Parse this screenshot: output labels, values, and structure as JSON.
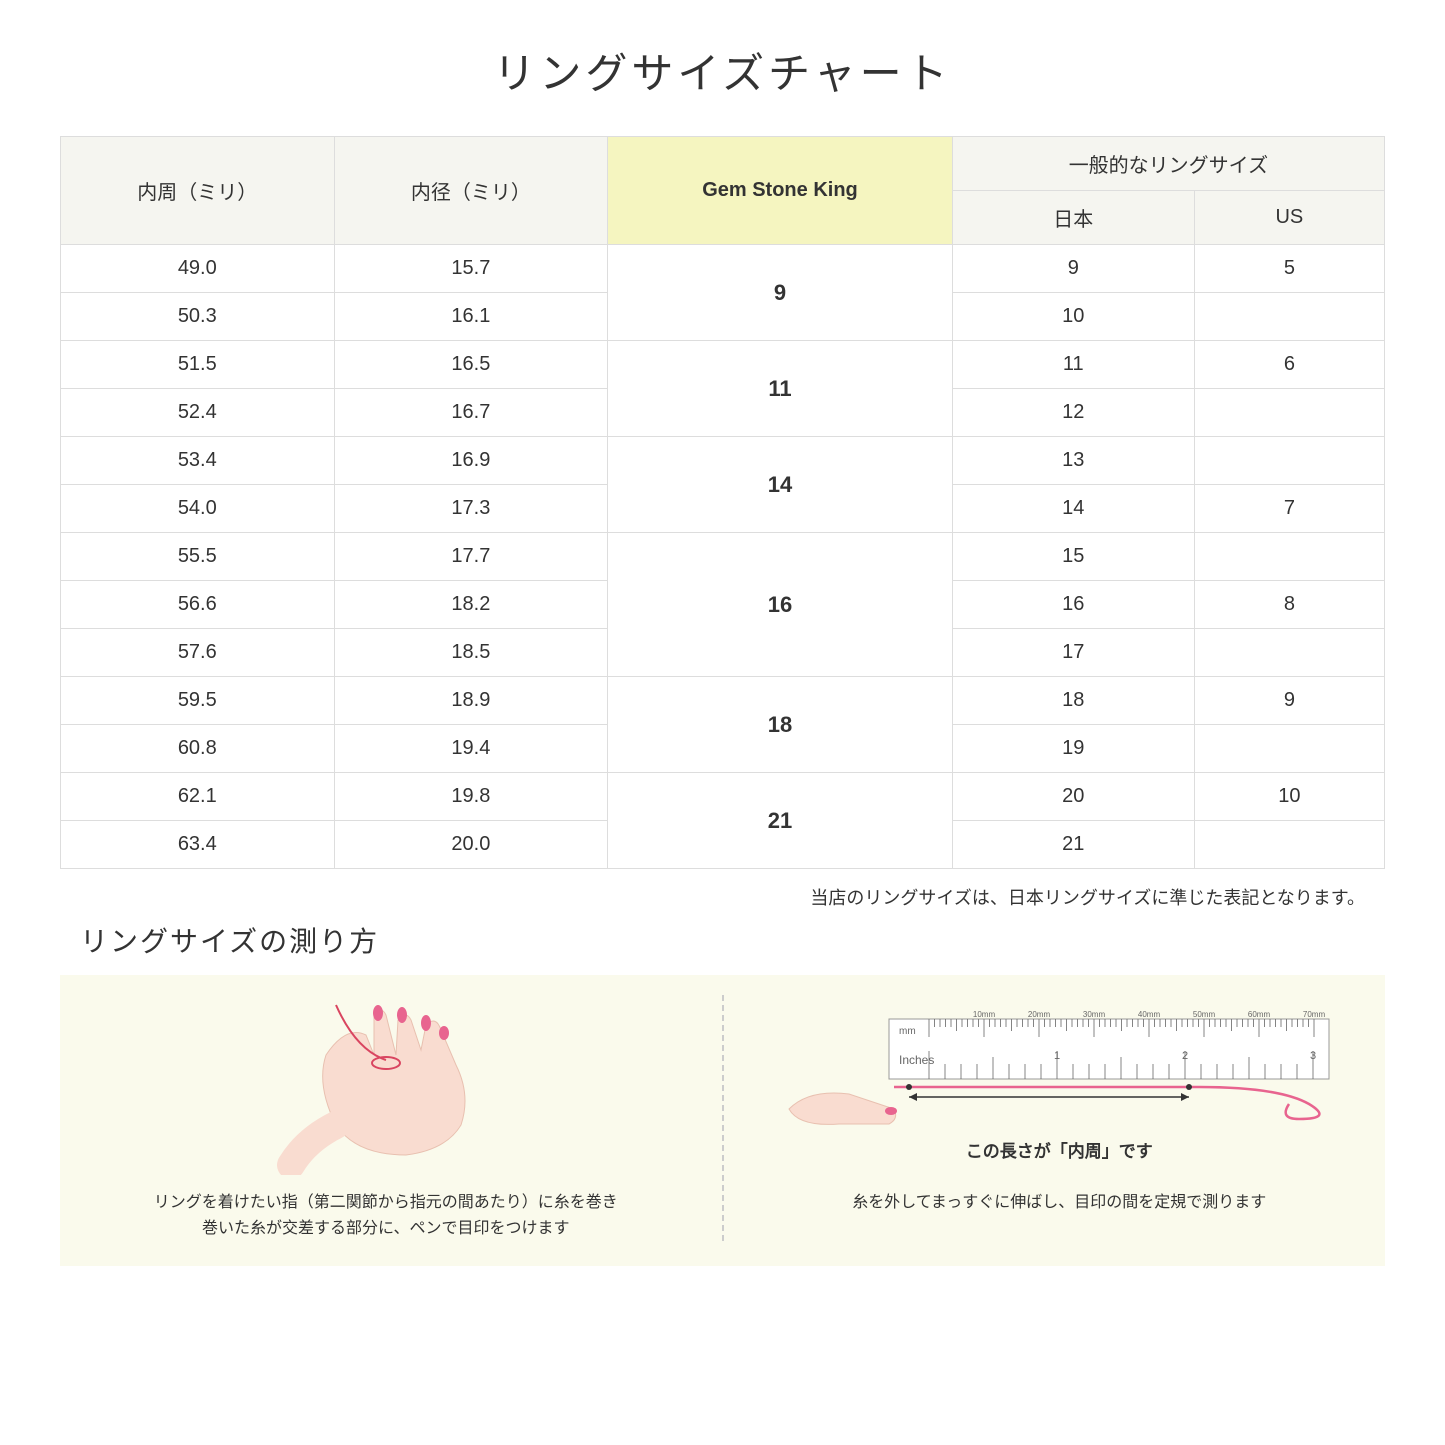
{
  "title": "リングサイズチャート",
  "headers": {
    "circumference": "内周（ミリ）",
    "diameter": "内径（ミリ）",
    "gsk": "Gem Stone King",
    "general": "一般的なリングサイズ",
    "japan": "日本",
    "us": "US"
  },
  "groups": [
    {
      "gsk": "9",
      "rows": [
        {
          "circ": "49.0",
          "dia": "15.7",
          "jp": "9",
          "us": "5"
        },
        {
          "circ": "50.3",
          "dia": "16.1",
          "jp": "10",
          "us": ""
        }
      ]
    },
    {
      "gsk": "11",
      "rows": [
        {
          "circ": "51.5",
          "dia": "16.5",
          "jp": "11",
          "us": "6"
        },
        {
          "circ": "52.4",
          "dia": "16.7",
          "jp": "12",
          "us": ""
        }
      ]
    },
    {
      "gsk": "14",
      "rows": [
        {
          "circ": "53.4",
          "dia": "16.9",
          "jp": "13",
          "us": ""
        },
        {
          "circ": "54.0",
          "dia": "17.3",
          "jp": "14",
          "us": "7"
        }
      ]
    },
    {
      "gsk": "16",
      "rows": [
        {
          "circ": "55.5",
          "dia": "17.7",
          "jp": "15",
          "us": ""
        },
        {
          "circ": "56.6",
          "dia": "18.2",
          "jp": "16",
          "us": "8"
        },
        {
          "circ": "57.6",
          "dia": "18.5",
          "jp": "17",
          "us": ""
        }
      ]
    },
    {
      "gsk": "18",
      "rows": [
        {
          "circ": "59.5",
          "dia": "18.9",
          "jp": "18",
          "us": "9"
        },
        {
          "circ": "60.8",
          "dia": "19.4",
          "jp": "19",
          "us": ""
        }
      ]
    },
    {
      "gsk": "21",
      "rows": [
        {
          "circ": "62.1",
          "dia": "19.8",
          "jp": "20",
          "us": "10"
        },
        {
          "circ": "63.4",
          "dia": "20.0",
          "jp": "21",
          "us": ""
        }
      ]
    }
  ],
  "note": "当店のリングサイズは、日本リングサイズに準じた表記となります。",
  "howto_title": "リングサイズの測り方",
  "howto": {
    "left_caption": "リングを着けたい指（第二関節から指元の間あたり）に糸を巻き\n巻いた糸が交差する部分に、ペンで目印をつけます",
    "ruler_label": "この長さが「内周」です",
    "right_caption": "糸を外してまっすぐに伸ばし、目印の間を定規で測ります",
    "ruler_marks": [
      "10mm",
      "20mm",
      "30mm",
      "40mm",
      "50mm",
      "60mm",
      "70mm"
    ],
    "ruler_inches": "Inches"
  },
  "colors": {
    "header_bg": "#f5f5f0",
    "highlight_bg": "#f5f5c0",
    "border": "#dddddd",
    "howto_bg": "#fafaec",
    "hand_skin": "#f9dcd0",
    "nail": "#e8648f",
    "thread": "#d94560",
    "ruler_border": "#999999"
  }
}
